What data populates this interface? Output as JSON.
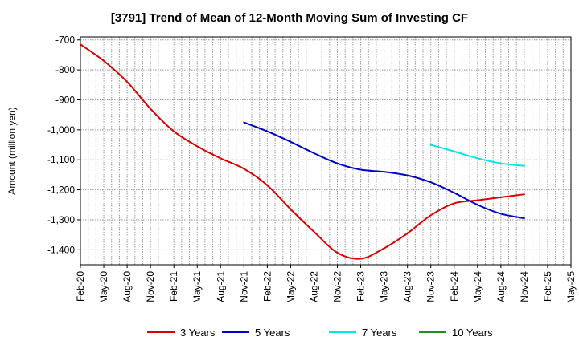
{
  "chart_data": {
    "type": "line",
    "title": "[3791]  Trend of Mean of 12-Month Moving Sum of Investing CF",
    "xlabel": "",
    "ylabel": "Amount (million yen)",
    "ylim": [
      -1450,
      -690
    ],
    "yticks": [
      -700,
      -800,
      -900,
      -1000,
      -1100,
      -1200,
      -1300,
      -1400
    ],
    "ytick_labels": [
      "-700",
      "-800",
      "-900",
      "-1,000",
      "-1,100",
      "-1,200",
      "-1,300",
      "-1,400"
    ],
    "x_tick_labels": [
      "Feb-20",
      "May-20",
      "Aug-20",
      "Nov-20",
      "Feb-21",
      "May-21",
      "Aug-21",
      "Nov-21",
      "Feb-22",
      "May-22",
      "Aug-22",
      "Nov-22",
      "Feb-23",
      "May-23",
      "Aug-23",
      "Nov-23",
      "Feb-24",
      "May-24",
      "Aug-24",
      "Nov-24",
      "Feb-25",
      "May-25"
    ],
    "grid": true,
    "legend_position": "bottom",
    "series": [
      {
        "name": "3 Years",
        "color": "#dd0000",
        "points": [
          [
            0,
            -715
          ],
          [
            1,
            -770
          ],
          [
            2,
            -840
          ],
          [
            3,
            -930
          ],
          [
            4,
            -1005
          ],
          [
            5,
            -1055
          ],
          [
            6,
            -1095
          ],
          [
            7,
            -1130
          ],
          [
            8,
            -1185
          ],
          [
            9,
            -1265
          ],
          [
            10,
            -1340
          ],
          [
            11,
            -1410
          ],
          [
            12,
            -1430
          ],
          [
            13,
            -1395
          ],
          [
            14,
            -1345
          ],
          [
            15,
            -1285
          ],
          [
            16,
            -1245
          ],
          [
            17,
            -1235
          ],
          [
            18,
            -1225
          ],
          [
            19,
            -1215
          ]
        ]
      },
      {
        "name": "5 Years",
        "color": "#0000cc",
        "points": [
          [
            7,
            -975
          ],
          [
            8,
            -1005
          ],
          [
            9,
            -1040
          ],
          [
            10,
            -1078
          ],
          [
            11,
            -1112
          ],
          [
            12,
            -1133
          ],
          [
            13,
            -1140
          ],
          [
            14,
            -1152
          ],
          [
            15,
            -1175
          ],
          [
            16,
            -1210
          ],
          [
            17,
            -1250
          ],
          [
            18,
            -1280
          ],
          [
            19,
            -1295
          ]
        ]
      },
      {
        "name": "7 Years",
        "color": "#00e5e5",
        "points": [
          [
            15,
            -1050
          ],
          [
            16,
            -1072
          ],
          [
            17,
            -1095
          ],
          [
            18,
            -1112
          ],
          [
            19,
            -1120
          ]
        ]
      },
      {
        "name": "10 Years",
        "color": "#228b22",
        "points": []
      }
    ]
  }
}
